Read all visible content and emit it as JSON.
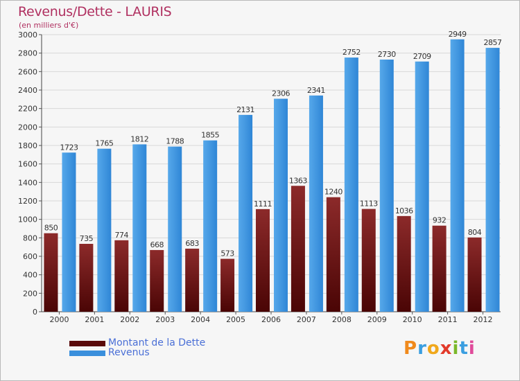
{
  "title": "Revenus/Dette - LAURIS",
  "subtitle": "(en milliers d'€)",
  "colors": {
    "dette": "#7a1a1a",
    "revenus": "#3a8fdc",
    "text": "#b03060",
    "legend_text": "#4a6fd6"
  },
  "legend": [
    {
      "label": "Montant de la Dette",
      "color": "#5a0a0a"
    },
    {
      "label": "Revenus",
      "color": "#3a8fdc"
    }
  ],
  "logo": {
    "text": "Proxiti"
  },
  "chart_data": {
    "type": "bar",
    "categories": [
      "2000",
      "2001",
      "2002",
      "2003",
      "2004",
      "2005",
      "2006",
      "2007",
      "2008",
      "2009",
      "2010",
      "2011",
      "2012"
    ],
    "series": [
      {
        "name": "Montant de la Dette",
        "values": [
          850,
          735,
          774,
          668,
          683,
          573,
          1111,
          1363,
          1240,
          1113,
          1036,
          932,
          804
        ],
        "labels": [
          "850",
          "735",
          "774",
          "668",
          "683",
          "573",
          "1111",
          "1363",
          "1240",
          "1113",
          "1036",
          "932",
          "804"
        ]
      },
      {
        "name": "Revenus",
        "values": [
          1723,
          1765,
          1812,
          1788,
          1855,
          2131,
          2306,
          2341,
          2752,
          2730,
          2709,
          2949,
          2857
        ],
        "labels": [
          "1723",
          "1765",
          "1812",
          "1788",
          "1855",
          "2131",
          "2306",
          "2341",
          "2752",
          "2730",
          "2709",
          "2949",
          "2857"
        ]
      }
    ],
    "ylim": [
      0,
      3000
    ],
    "yticks": [
      "0",
      "200",
      "400",
      "600",
      "800",
      "1000",
      "1200",
      "1400",
      "1600",
      "1800",
      "2000",
      "2200",
      "2400",
      "2600",
      "2800",
      "3000"
    ],
    "grid": true,
    "legend_position": "bottom-left"
  }
}
